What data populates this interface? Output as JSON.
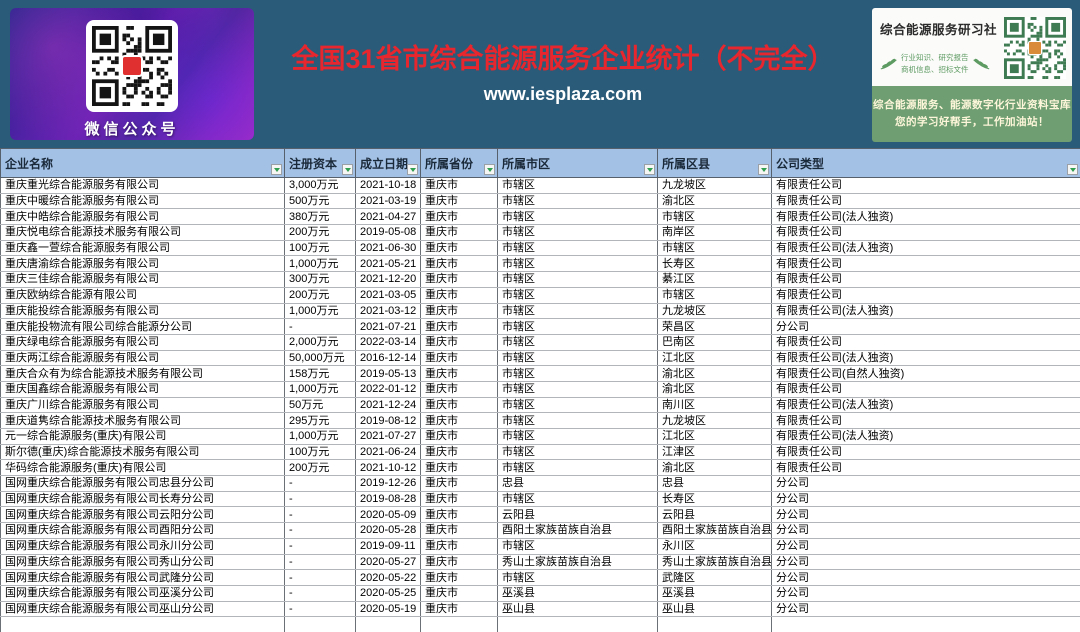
{
  "banner": {
    "title": "全国31省市综合能源服务企业统计（不完全）",
    "website": "www.iesplaza.com",
    "title_color": "#e8262d",
    "background_color": "#2a5b78",
    "wechat_card": {
      "qr_label": "微信公众号",
      "qr_icon": "wechat-qr-code",
      "logo_color": "#e03030"
    },
    "club_card": {
      "name": "综合能源服务研习社",
      "tagline_line1": "行业知识、研究报告",
      "tagline_line2": "商机信息、招标文件",
      "tagline_icon": "wheat-leaf-icon",
      "qr_icon": "club-qr-code",
      "footer_line1": "综合能源服务、能源数字化行业资料宝库",
      "footer_line2": "您的学习好帮手，工作加油站！",
      "green_color": "#6f9e72",
      "tagline_color": "#5d9b62"
    }
  },
  "table": {
    "header_fill": "#a3c1e5",
    "filter_icon": "green-down-arrow",
    "columns": [
      {
        "label": "企业名称"
      },
      {
        "label": "注册资本"
      },
      {
        "label": "成立日期"
      },
      {
        "label": "所属省份"
      },
      {
        "label": "所属市区"
      },
      {
        "label": "所属区县"
      },
      {
        "label": "公司类型"
      }
    ],
    "rows": [
      [
        "重庆重光综合能源服务有限公司",
        "3,000万元",
        "2021-10-18",
        "重庆市",
        "市辖区",
        "九龙坡区",
        "有限责任公司"
      ],
      [
        "重庆中暖综合能源服务有限公司",
        "500万元",
        "2021-03-19",
        "重庆市",
        "市辖区",
        "渝北区",
        "有限责任公司"
      ],
      [
        "重庆中皓综合能源服务有限公司",
        "380万元",
        "2021-04-27",
        "重庆市",
        "市辖区",
        "市辖区",
        "有限责任公司(法人独资)"
      ],
      [
        "重庆悦电综合能源技术服务有限公司",
        "200万元",
        "2019-05-08",
        "重庆市",
        "市辖区",
        "南岸区",
        "有限责任公司"
      ],
      [
        "重庆鑫一萱综合能源服务有限公司",
        "100万元",
        "2021-06-30",
        "重庆市",
        "市辖区",
        "市辖区",
        "有限责任公司(法人独资)"
      ],
      [
        "重庆唐渝综合能源服务有限公司",
        "1,000万元",
        "2021-05-21",
        "重庆市",
        "市辖区",
        "长寿区",
        "有限责任公司"
      ],
      [
        "重庆三佳综合能源服务有限公司",
        "300万元",
        "2021-12-20",
        "重庆市",
        "市辖区",
        "綦江区",
        "有限责任公司"
      ],
      [
        "重庆欧纳综合能源有限公司",
        "200万元",
        "2021-03-05",
        "重庆市",
        "市辖区",
        "市辖区",
        "有限责任公司"
      ],
      [
        "重庆能投综合能源服务有限公司",
        "1,000万元",
        "2021-03-12",
        "重庆市",
        "市辖区",
        "九龙坡区",
        "有限责任公司(法人独资)"
      ],
      [
        "重庆能投物流有限公司综合能源分公司",
        "-",
        "2021-07-21",
        "重庆市",
        "市辖区",
        "荣昌区",
        "分公司"
      ],
      [
        "重庆绿电综合能源服务有限公司",
        "2,000万元",
        "2022-03-14",
        "重庆市",
        "市辖区",
        "巴南区",
        "有限责任公司"
      ],
      [
        "重庆两江综合能源服务有限公司",
        "50,000万元",
        "2016-12-14",
        "重庆市",
        "市辖区",
        "江北区",
        "有限责任公司(法人独资)"
      ],
      [
        "重庆合众有为综合能源技术服务有限公司",
        "158万元",
        "2019-05-13",
        "重庆市",
        "市辖区",
        "渝北区",
        "有限责任公司(自然人独资)"
      ],
      [
        "重庆国鑫综合能源服务有限公司",
        "1,000万元",
        "2022-01-12",
        "重庆市",
        "市辖区",
        "渝北区",
        "有限责任公司"
      ],
      [
        "重庆广川综合能源服务有限公司",
        "50万元",
        "2021-12-24",
        "重庆市",
        "市辖区",
        "南川区",
        "有限责任公司(法人独资)"
      ],
      [
        "重庆道隽综合能源技术服务有限公司",
        "295万元",
        "2019-08-12",
        "重庆市",
        "市辖区",
        "九龙坡区",
        "有限责任公司"
      ],
      [
        "元一综合能源服务(重庆)有限公司",
        "1,000万元",
        "2021-07-27",
        "重庆市",
        "市辖区",
        "江北区",
        "有限责任公司(法人独资)"
      ],
      [
        "斯尔德(重庆)综合能源技术服务有限公司",
        "100万元",
        "2021-06-24",
        "重庆市",
        "市辖区",
        "江津区",
        "有限责任公司"
      ],
      [
        "华码综合能源服务(重庆)有限公司",
        "200万元",
        "2021-10-12",
        "重庆市",
        "市辖区",
        "渝北区",
        "有限责任公司"
      ],
      [
        "国网重庆综合能源服务有限公司忠县分公司",
        "-",
        "2019-12-26",
        "重庆市",
        "忠县",
        "忠县",
        "分公司"
      ],
      [
        "国网重庆综合能源服务有限公司长寿分公司",
        "-",
        "2019-08-28",
        "重庆市",
        "市辖区",
        "长寿区",
        "分公司"
      ],
      [
        "国网重庆综合能源服务有限公司云阳分公司",
        "-",
        "2020-05-09",
        "重庆市",
        "云阳县",
        "云阳县",
        "分公司"
      ],
      [
        "国网重庆综合能源服务有限公司酉阳分公司",
        "-",
        "2020-05-28",
        "重庆市",
        "酉阳土家族苗族自治县",
        "酉阳土家族苗族自治县",
        "分公司"
      ],
      [
        "国网重庆综合能源服务有限公司永川分公司",
        "-",
        "2019-09-11",
        "重庆市",
        "市辖区",
        "永川区",
        "分公司"
      ],
      [
        "国网重庆综合能源服务有限公司秀山分公司",
        "-",
        "2020-05-27",
        "重庆市",
        "秀山土家族苗族自治县",
        "秀山土家族苗族自治县",
        "分公司"
      ],
      [
        "国网重庆综合能源服务有限公司武隆分公司",
        "-",
        "2020-05-22",
        "重庆市",
        "市辖区",
        "武隆区",
        "分公司"
      ],
      [
        "国网重庆综合能源服务有限公司巫溪分公司",
        "-",
        "2020-05-25",
        "重庆市",
        "巫溪县",
        "巫溪县",
        "分公司"
      ],
      [
        "国网重庆综合能源服务有限公司巫山分公司",
        "-",
        "2020-05-19",
        "重庆市",
        "巫山县",
        "巫山县",
        "分公司"
      ]
    ]
  }
}
